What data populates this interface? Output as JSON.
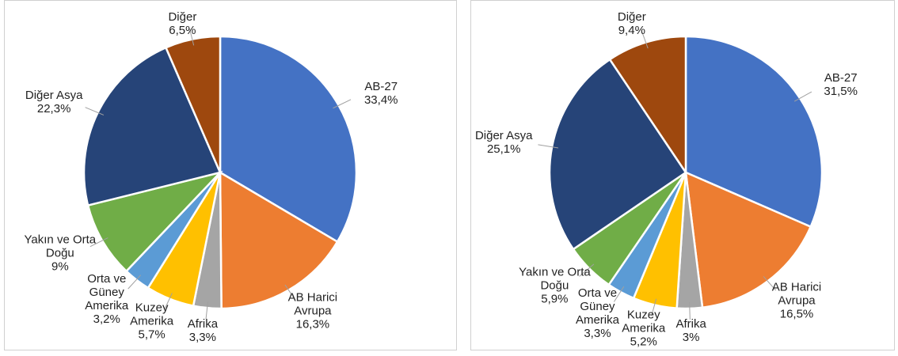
{
  "chart_data": [
    {
      "type": "pie",
      "categories": [
        "AB-27",
        "AB Harici Avrupa",
        "Afrika",
        "Kuzey Amerika",
        "Orta ve Güney Amerika",
        "Yakın ve Orta Doğu",
        "Diğer Asya",
        "Diğer"
      ],
      "values": [
        33.4,
        16.3,
        3.3,
        5.7,
        3.2,
        9,
        22.3,
        6.5
      ],
      "value_labels": [
        "33,4%",
        "16,3%",
        "3,3%",
        "5,7%",
        "3,2%",
        "9%",
        "22,3%",
        "6,5%"
      ],
      "colors": [
        "#4472c4",
        "#ed7d31",
        "#a5a5a5",
        "#ffc000",
        "#5b9bd5",
        "#70ad47",
        "#264478",
        "#9e480e"
      ]
    },
    {
      "type": "pie",
      "categories": [
        "AB-27",
        "AB Harici Avrupa",
        "Afrika",
        "Kuzey Amerika",
        "Orta ve Güney Amerika",
        "Yakın ve Orta Doğu",
        "Diğer Asya",
        "Diğer"
      ],
      "values": [
        31.5,
        16.5,
        3,
        5.2,
        3.3,
        5.9,
        25.1,
        9.4
      ],
      "value_labels": [
        "31,5%",
        "16,5%",
        "3%",
        "5,2%",
        "3,3%",
        "5,9%",
        "25,1%",
        "9,4%"
      ],
      "colors": [
        "#4472c4",
        "#ed7d31",
        "#a5a5a5",
        "#ffc000",
        "#5b9bd5",
        "#70ad47",
        "#264478",
        "#9e480e"
      ]
    }
  ]
}
